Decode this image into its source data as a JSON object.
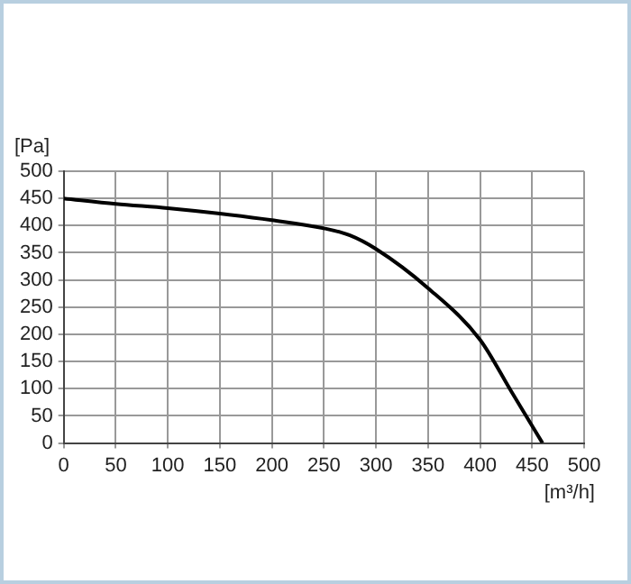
{
  "chart_data": {
    "type": "line",
    "xlabel": "[m³/h]",
    "ylabel": "[Pa]",
    "x": [
      0,
      50,
      100,
      150,
      200,
      250,
      275,
      300,
      350,
      400,
      430,
      460
    ],
    "series": [
      {
        "color": "#000000",
        "values": [
          450,
          440,
          432,
          422,
          410,
          395,
          382,
          357,
          285,
          190,
          95,
          0
        ]
      }
    ],
    "xlim": [
      0,
      500
    ],
    "xticks": [
      0,
      50,
      100,
      150,
      200,
      250,
      300,
      350,
      400,
      450,
      500
    ],
    "ylim": [
      0,
      500
    ],
    "yticks": [
      0,
      50,
      100,
      150,
      200,
      250,
      300,
      350,
      400,
      450,
      500
    ],
    "grid": true,
    "legend": false,
    "marker": "none",
    "line_style": "solid"
  }
}
